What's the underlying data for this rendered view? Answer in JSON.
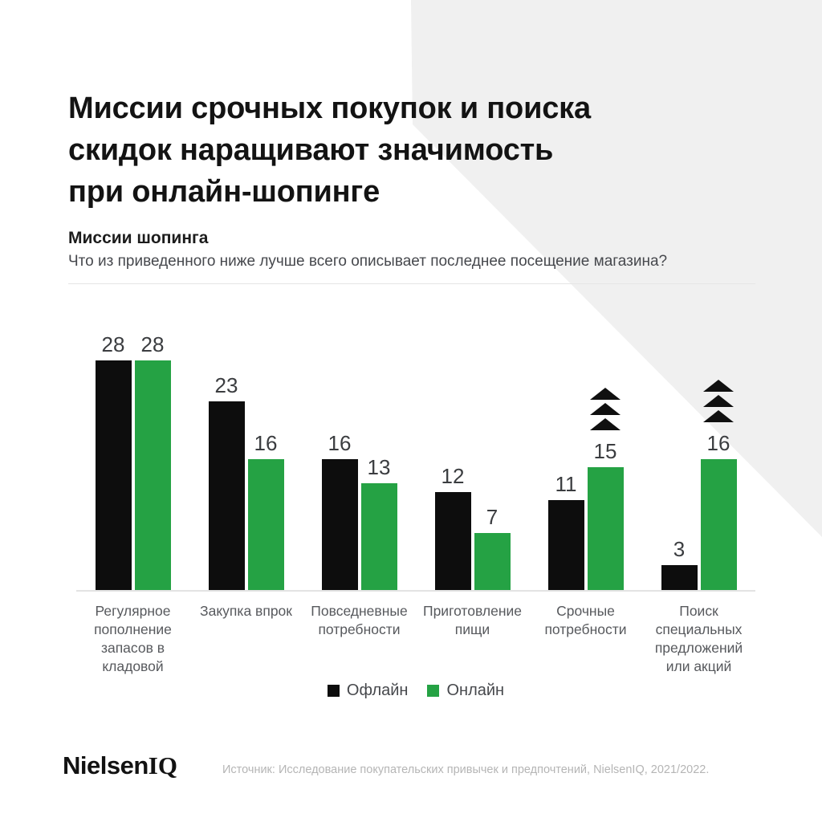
{
  "header": {
    "title": "Миссии срочных покупок и поиска скидок наращивают значимость при онлайн-шопинге",
    "title_lines": [
      "Миссии срочных покупок и поиска",
      "скидок наращивают значимость",
      "при онлайн-шопинге"
    ]
  },
  "chart_header": {
    "title": "Миссии шопинга",
    "question": "Что из приведенного ниже лучше всего описывает последнее посещение магазина?"
  },
  "chart_data": {
    "type": "bar",
    "title": "Миссии шопинга",
    "subtitle": "Что из приведенного ниже лучше всего описывает последнее посещение магазина?",
    "categories": [
      "Регулярное пополнение запасов в кладовой",
      "Закупка впрок",
      "Повседневные потребности",
      "Приготовление пищи",
      "Срочные потребности",
      "Поиск специальных предложений или акций"
    ],
    "categories_display_lines": [
      [
        "Регулярное",
        "пополнение",
        "запасов в",
        "кладовой"
      ],
      [
        "Закупка впрок"
      ],
      [
        "Повседневные",
        "потребности"
      ],
      [
        "Приготовление",
        "пищи"
      ],
      [
        "Срочные",
        "потребности"
      ],
      [
        "Поиск",
        "специальных",
        "предложений",
        "или акций"
      ]
    ],
    "series": [
      {
        "name": "Офлайн",
        "color": "#0d0d0d",
        "values": [
          28,
          23,
          16,
          12,
          11,
          3
        ]
      },
      {
        "name": "Онлайн",
        "color": "#25a244",
        "values": [
          28,
          16,
          13,
          7,
          15,
          16
        ]
      }
    ],
    "annotations": [
      {
        "type": "triple-up-arrow",
        "series": "Онлайн",
        "category_indexes": [
          4,
          5
        ],
        "color": "#101010"
      }
    ],
    "ylim": [
      0,
      30
    ],
    "grid": false,
    "value_labels": true,
    "legend_position": "bottom-center",
    "xlabel": "",
    "ylabel": ""
  },
  "footer": {
    "logo_nielsen": "Nielsen",
    "logo_iq": "IQ",
    "source": "Источник: Исследование покупательских привычек и предпочтений, NielsenIQ, 2021/2022."
  },
  "colors": {
    "background": "#ffffff",
    "corner_shape": "#f0f0f0",
    "offline_bar": "#0d0d0d",
    "online_bar": "#25a244",
    "axis_line": "#e3e3e3",
    "value_label": "#3b3d40",
    "category_label": "#57595d",
    "legend_text": "#46484c",
    "source_text": "#b5b5b5"
  }
}
